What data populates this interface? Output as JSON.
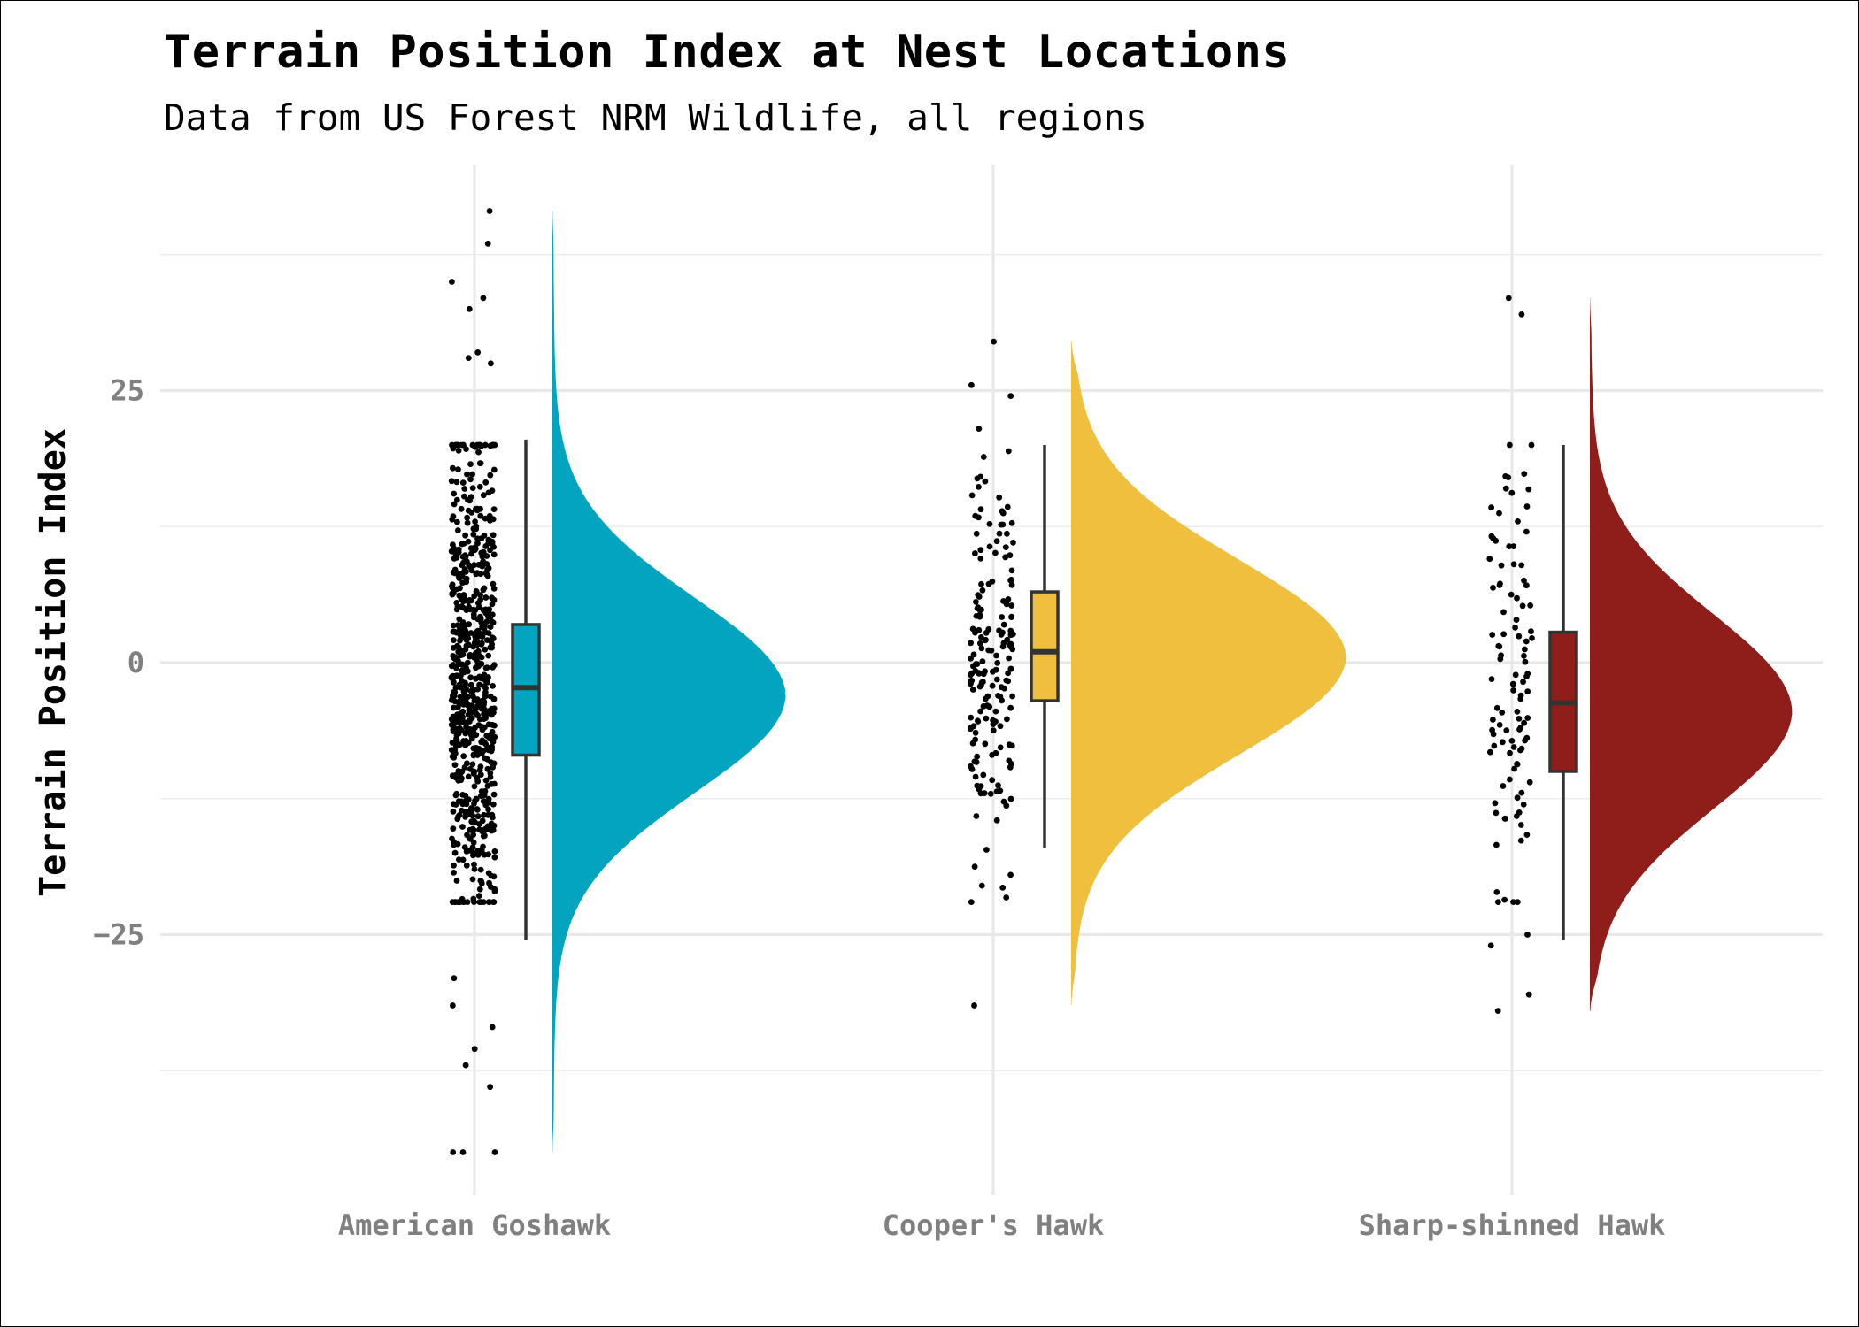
{
  "title": "Terrain Position Index at Nest Locations",
  "subtitle": "Data from US Forest NRM Wildlife, all regions",
  "chart_data": {
    "type": "raincloud",
    "ylabel": "Terrain Position Index",
    "xlabel": "",
    "ylim": [
      -49,
      51
    ],
    "yticks": [
      -25,
      0,
      25
    ],
    "grid": true,
    "legend": "none",
    "categories": [
      "American Goshawk",
      "Cooper's Hawk",
      "Sharp-shinned Hawk"
    ],
    "colors": [
      "#02a4bf",
      "#f0bf3d",
      "#8f1d19"
    ],
    "box": [
      {
        "lower_whisker": -25.5,
        "q1": -8.5,
        "median": -2.3,
        "q3": 3.5,
        "upper_whisker": 20.5
      },
      {
        "lower_whisker": -17,
        "q1": -3.5,
        "median": 1,
        "q3": 6.5,
        "upper_whisker": 20
      },
      {
        "lower_whisker": -25.5,
        "q1": -10,
        "median": -3.7,
        "q3": 2.8,
        "upper_whisker": 20
      }
    ],
    "density": [
      {
        "range": [
          -45,
          41.5
        ],
        "mode": -3,
        "width": 0.45
      },
      {
        "range": [
          -31.5,
          29.5
        ],
        "mode": 0.5,
        "width": 0.53
      },
      {
        "range": [
          -32,
          33.5
        ],
        "mode": -4.5,
        "width": 0.39
      }
    ],
    "points": [
      {
        "n": 700,
        "mean": -2,
        "sd": 11,
        "min": -45,
        "max": 41.5,
        "extremes": [
          41.5,
          38.5,
          35,
          33.5,
          32.5,
          28.5,
          28,
          27.5,
          -29,
          -31.5,
          -33.5,
          -35.5,
          -37,
          -39,
          -45,
          -45,
          -45
        ]
      },
      {
        "n": 190,
        "mean": 1,
        "sd": 8.5,
        "min": -31.5,
        "max": 29.5,
        "extremes": [
          29.5,
          25.5,
          24.5,
          21.5,
          -19.5,
          -20.5,
          -31.5
        ]
      },
      {
        "n": 110,
        "mean": -3,
        "sd": 10,
        "min": -32,
        "max": 33.5,
        "extremes": [
          33.5,
          32,
          20,
          16,
          -25,
          -26,
          -30.5,
          -32
        ]
      }
    ]
  }
}
